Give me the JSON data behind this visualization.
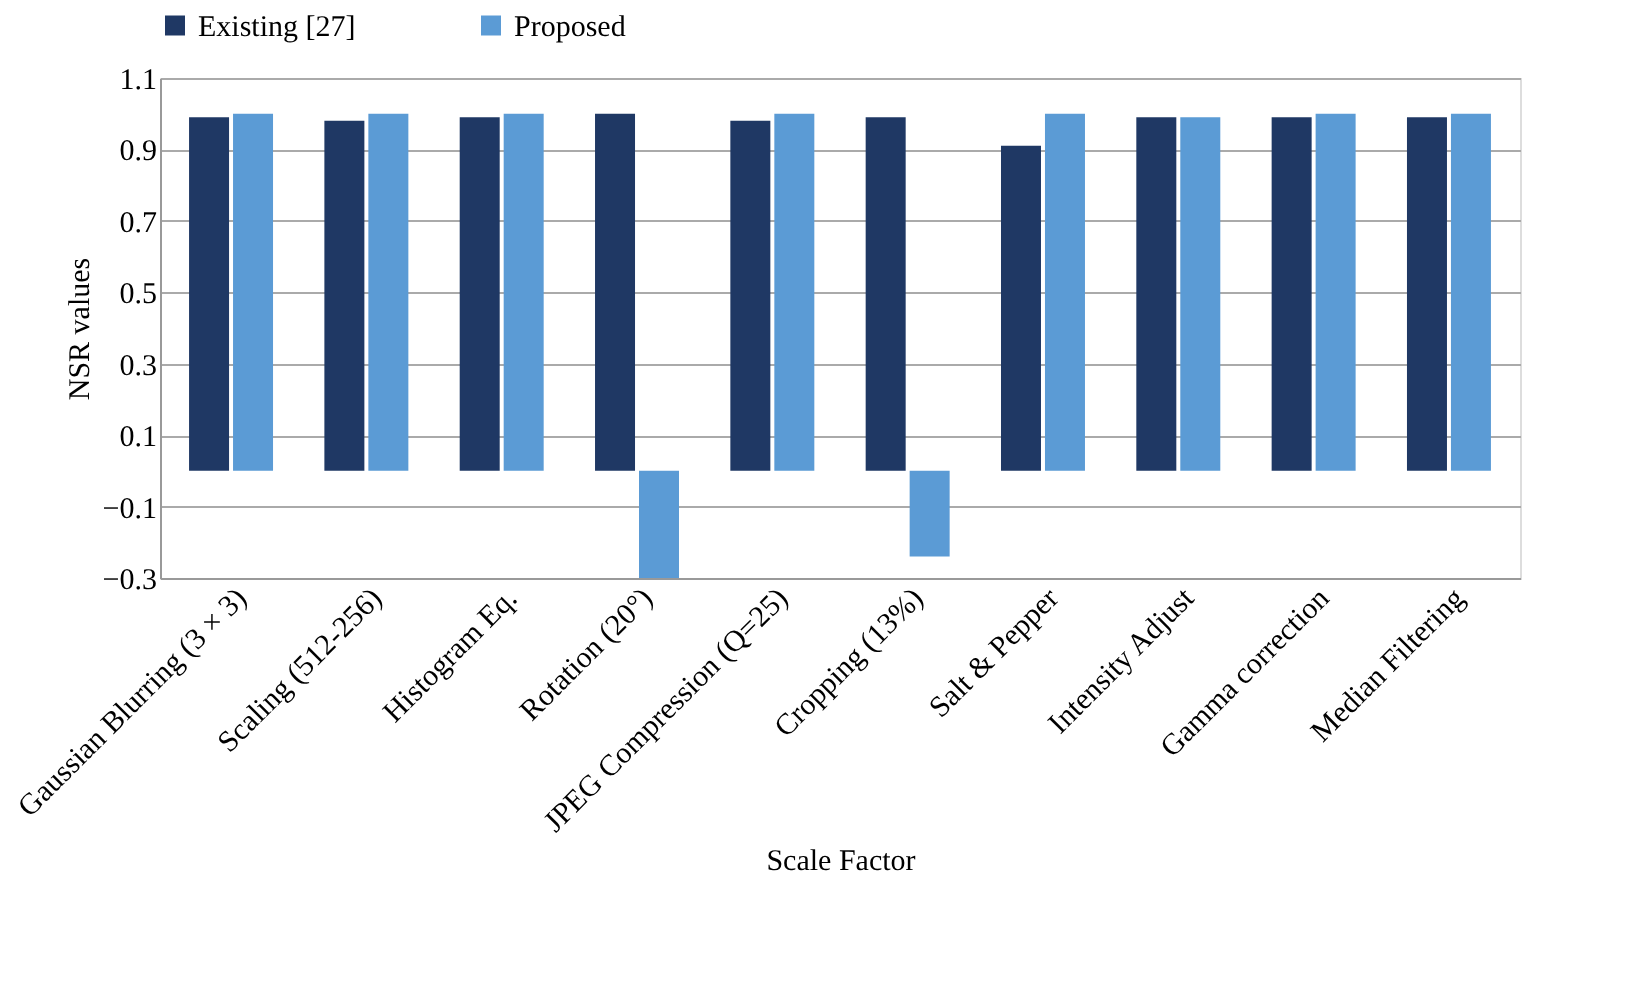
{
  "chart_data": {
    "type": "bar",
    "xlabel": "Scale Factor",
    "ylabel": "NSR values",
    "categories": [
      "Gaussian Blurring (3 × 3)",
      "Scaling  (512-256)",
      "Histogram Eq.",
      "Rotation (20°)",
      "JPEG Compression (Q=25)",
      "Cropping (13%)",
      "Salt & Pepper",
      "Intensity  Adjust",
      "Gamma correction",
      "Median Filtering"
    ],
    "series": [
      {
        "name": "Existing [27]",
        "color": "#1f3864",
        "values": [
          0.99,
          0.98,
          0.99,
          1.0,
          0.98,
          0.99,
          0.91,
          0.99,
          0.99,
          0.99
        ]
      },
      {
        "name": "Proposed",
        "color": "#5b9bd5",
        "values": [
          1.0,
          1.0,
          1.0,
          -0.3,
          1.0,
          -0.24,
          1.0,
          0.99,
          1.0,
          1.0
        ]
      }
    ],
    "ylim": [
      -0.3,
      1.1
    ],
    "yticks": [
      -0.3,
      -0.1,
      0.1,
      0.3,
      0.5,
      0.7,
      0.9,
      1.1
    ],
    "grid": "y",
    "legend": "top"
  }
}
